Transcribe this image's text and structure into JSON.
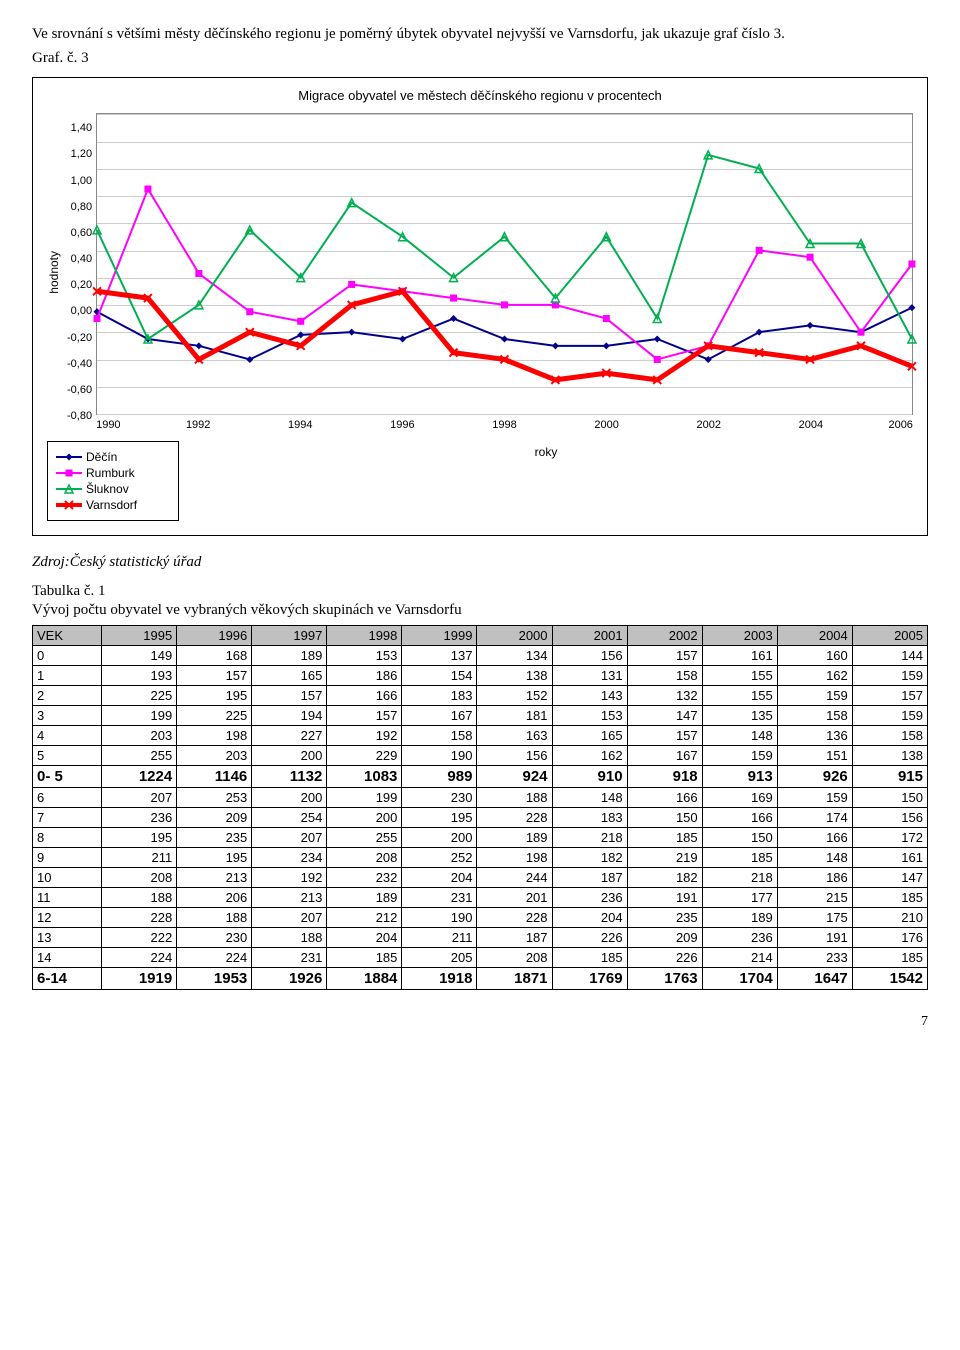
{
  "intro": "Ve srovnání s většími městy děčínského regionu je poměrný úbytek obyvatel nejvyšší ve Varnsdorfu, jak ukazuje graf číslo 3.",
  "graf_label": "Graf. č. 3",
  "chart": {
    "title": "Migrace obyvatel ve městech děčínského regionu v procentech",
    "ylabel": "hodnoty",
    "xlabel": "roky",
    "ylim": [
      -0.8,
      1.4
    ],
    "ytick_step": 0.2,
    "yticks": [
      "1,40",
      "1,20",
      "1,00",
      "0,80",
      "0,60",
      "0,40",
      "0,20",
      "0,00",
      "-0,20",
      "-0,40",
      "-0,60",
      "-0,80"
    ],
    "xvalues": [
      1990,
      1992,
      1994,
      1996,
      1998,
      2000,
      2002,
      2004,
      2006
    ],
    "xlabels": [
      "1990",
      "1992",
      "1994",
      "1996",
      "1998",
      "2000",
      "2002",
      "2004",
      "2006"
    ],
    "grid_color": "#cccccc",
    "background_color": "#ffffff",
    "series": [
      {
        "name": "Děčín",
        "color": "#00008b",
        "width": 2,
        "marker": "diamond",
        "marker_size": 7,
        "xs": [
          1990,
          1991,
          1992,
          1993,
          1994,
          1995,
          1996,
          1997,
          1998,
          1999,
          2000,
          2001,
          2002,
          2003,
          2004,
          2005,
          2006
        ],
        "ys": [
          -0.05,
          -0.25,
          -0.3,
          -0.4,
          -0.22,
          -0.2,
          -0.25,
          -0.1,
          -0.25,
          -0.3,
          -0.3,
          -0.25,
          -0.4,
          -0.2,
          -0.15,
          -0.2,
          -0.02
        ]
      },
      {
        "name": "Rumburk",
        "color": "#ff00ff",
        "width": 2,
        "marker": "square",
        "marker_size": 7,
        "xs": [
          1990,
          1991,
          1992,
          1993,
          1994,
          1995,
          1996,
          1997,
          1998,
          1999,
          2000,
          2001,
          2002,
          2003,
          2004,
          2005,
          2006
        ],
        "ys": [
          -0.1,
          0.85,
          0.23,
          -0.05,
          -0.12,
          0.15,
          0.1,
          0.05,
          0.0,
          0.0,
          -0.1,
          -0.4,
          -0.3,
          0.4,
          0.35,
          -0.2,
          0.3
        ]
      },
      {
        "name": "Šluknov",
        "color": "#00b050",
        "width": 2,
        "marker": "triangle",
        "marker_size": 8,
        "xs": [
          1990,
          1991,
          1992,
          1993,
          1994,
          1995,
          1996,
          1997,
          1998,
          1999,
          2000,
          2001,
          2002,
          2003,
          2004,
          2005,
          2006
        ],
        "ys": [
          0.55,
          -0.25,
          0.0,
          0.55,
          0.2,
          0.75,
          0.5,
          0.2,
          0.5,
          0.05,
          0.5,
          -0.1,
          1.1,
          1.0,
          0.45,
          0.45,
          -0.25
        ]
      },
      {
        "name": "Varnsdorf",
        "color": "#ff0000",
        "width": 5,
        "marker": "x",
        "marker_size": 8,
        "xs": [
          1990,
          1991,
          1992,
          1993,
          1994,
          1995,
          1996,
          1997,
          1998,
          1999,
          2000,
          2001,
          2002,
          2003,
          2004,
          2005,
          2006
        ],
        "ys": [
          0.1,
          0.05,
          -0.4,
          -0.2,
          -0.3,
          0.0,
          0.1,
          -0.35,
          -0.4,
          -0.55,
          -0.5,
          -0.55,
          -0.3,
          -0.35,
          -0.4,
          -0.3,
          -0.45
        ]
      }
    ]
  },
  "source": "Zdroj:Český statistický úřad",
  "tab_label": "Tabulka č. 1",
  "tab_caption": "Vývoj počtu obyvatel ve vybraných věkových skupinách ve Varnsdorfu",
  "table": {
    "columns": [
      "VEK",
      "1995",
      "1996",
      "1997",
      "1998",
      "1999",
      "2000",
      "2001",
      "2002",
      "2003",
      "2004",
      "2005"
    ],
    "rows": [
      [
        "0",
        "149",
        "168",
        "189",
        "153",
        "137",
        "134",
        "156",
        "157",
        "161",
        "160",
        "144"
      ],
      [
        "1",
        "193",
        "157",
        "165",
        "186",
        "154",
        "138",
        "131",
        "158",
        "155",
        "162",
        "159"
      ],
      [
        "2",
        "225",
        "195",
        "157",
        "166",
        "183",
        "152",
        "143",
        "132",
        "155",
        "159",
        "157"
      ],
      [
        "3",
        "199",
        "225",
        "194",
        "157",
        "167",
        "181",
        "153",
        "147",
        "135",
        "158",
        "159"
      ],
      [
        "4",
        "203",
        "198",
        "227",
        "192",
        "158",
        "163",
        "165",
        "157",
        "148",
        "136",
        "158"
      ],
      [
        "5",
        "255",
        "203",
        "200",
        "229",
        "190",
        "156",
        "162",
        "167",
        "159",
        "151",
        "138"
      ],
      [
        "0- 5",
        "1224",
        "1146",
        "1132",
        "1083",
        "989",
        "924",
        "910",
        "918",
        "913",
        "926",
        "915"
      ],
      [
        "6",
        "207",
        "253",
        "200",
        "199",
        "230",
        "188",
        "148",
        "166",
        "169",
        "159",
        "150"
      ],
      [
        "7",
        "236",
        "209",
        "254",
        "200",
        "195",
        "228",
        "183",
        "150",
        "166",
        "174",
        "156"
      ],
      [
        "8",
        "195",
        "235",
        "207",
        "255",
        "200",
        "189",
        "218",
        "185",
        "150",
        "166",
        "172"
      ],
      [
        "9",
        "211",
        "195",
        "234",
        "208",
        "252",
        "198",
        "182",
        "219",
        "185",
        "148",
        "161"
      ],
      [
        "10",
        "208",
        "213",
        "192",
        "232",
        "204",
        "244",
        "187",
        "182",
        "218",
        "186",
        "147"
      ],
      [
        "11",
        "188",
        "206",
        "213",
        "189",
        "231",
        "201",
        "236",
        "191",
        "177",
        "215",
        "185"
      ],
      [
        "12",
        "228",
        "188",
        "207",
        "212",
        "190",
        "228",
        "204",
        "235",
        "189",
        "175",
        "210"
      ],
      [
        "13",
        "222",
        "230",
        "188",
        "204",
        "211",
        "187",
        "226",
        "209",
        "236",
        "191",
        "176"
      ],
      [
        "14",
        "224",
        "224",
        "231",
        "185",
        "205",
        "208",
        "185",
        "226",
        "214",
        "233",
        "185"
      ],
      [
        "6-14",
        "1919",
        "1953",
        "1926",
        "1884",
        "1918",
        "1871",
        "1769",
        "1763",
        "1704",
        "1647",
        "1542"
      ]
    ],
    "bold_rows": [
      6,
      16
    ],
    "header_bg": "#c0c0c0"
  },
  "page_number": "7"
}
